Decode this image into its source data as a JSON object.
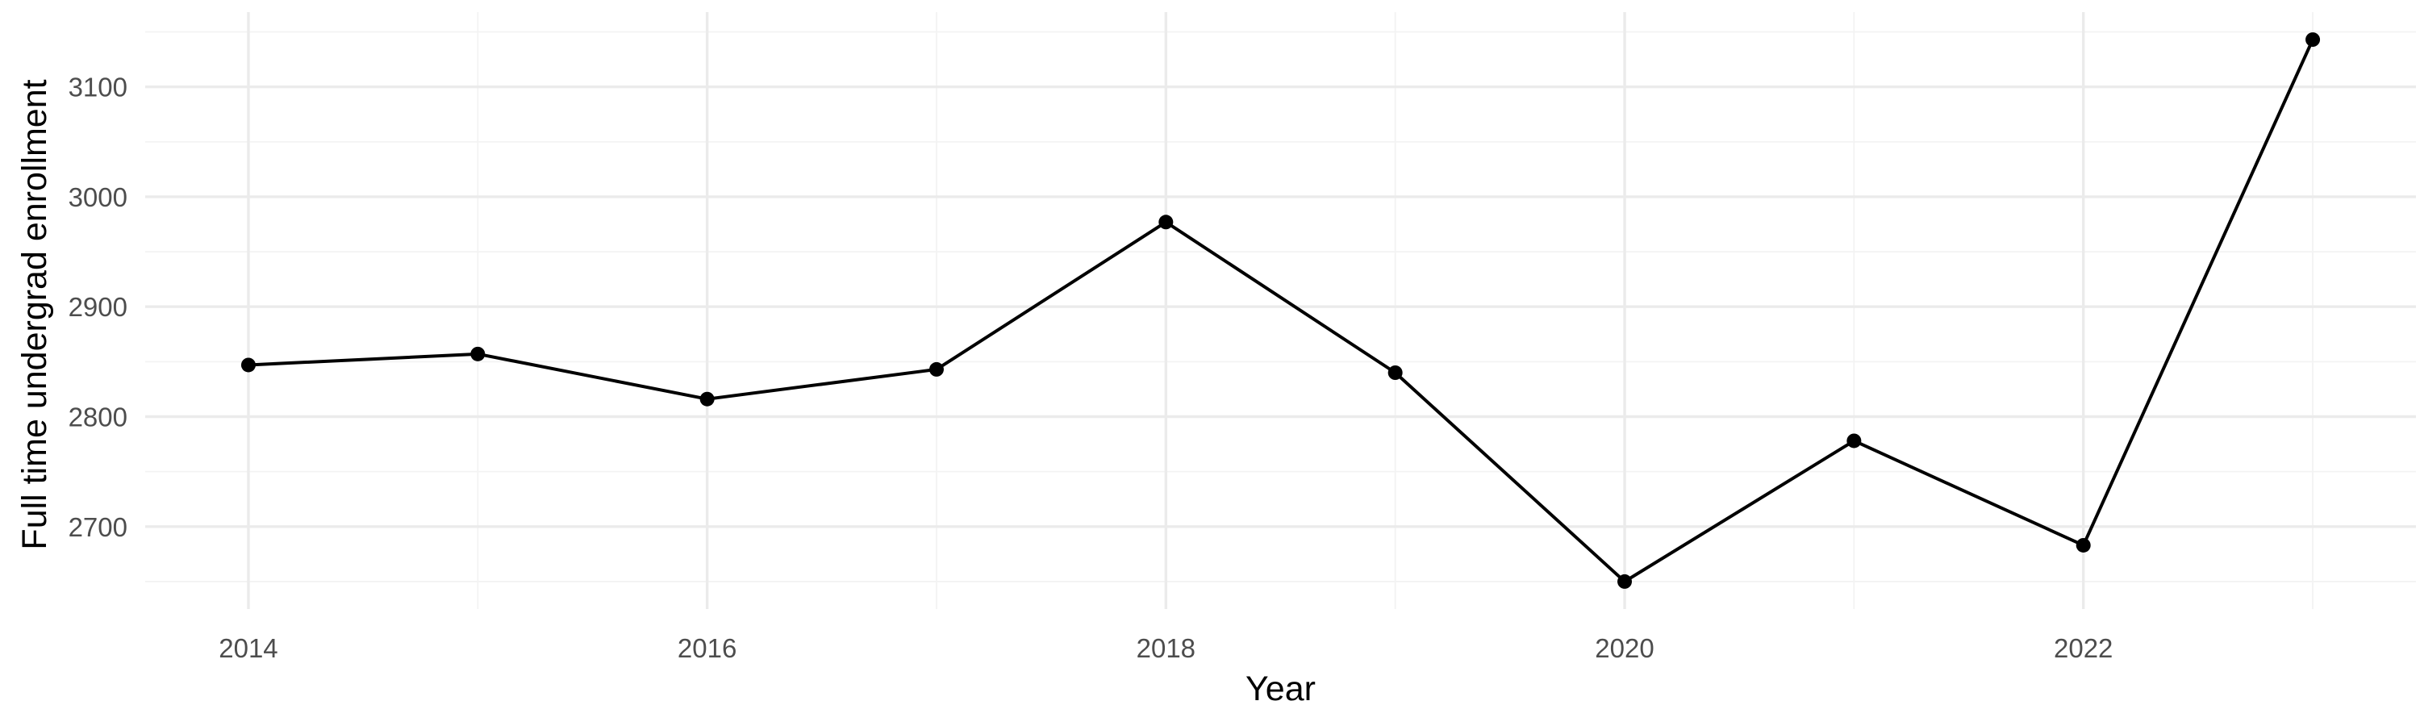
{
  "chart_data": {
    "type": "line",
    "title": "",
    "xlabel": "Year",
    "ylabel": "Full time undergrad enrollment",
    "x": [
      2014,
      2015,
      2016,
      2017,
      2018,
      2019,
      2020,
      2021,
      2022,
      2023
    ],
    "series": [
      {
        "values": [
          2847,
          2857,
          2816,
          2843,
          2977,
          2840,
          2650,
          2778,
          2683,
          3143
        ]
      }
    ],
    "xlim": [
      2013.55,
      2023.45
    ],
    "ylim": [
      2625,
      3168
    ],
    "x_ticks": [
      2014,
      2016,
      2018,
      2020,
      2022
    ],
    "x_tick_labels": [
      "2014",
      "2016",
      "2018",
      "2020",
      "2022"
    ],
    "x_minor_ticks": [
      2015,
      2017,
      2019,
      2021,
      2023
    ],
    "y_ticks": [
      2700,
      2800,
      2900,
      3000,
      3100
    ],
    "y_tick_labels": [
      "2700",
      "2800",
      "2900",
      "3000",
      "3100"
    ],
    "y_minor_ticks": [
      2650,
      2750,
      2850,
      2950,
      3050,
      3150
    ],
    "grid": true,
    "legend": "none",
    "colors": {
      "line": "#000000",
      "points": "#000000",
      "grid": "#ebebeb",
      "background": "#ffffff"
    }
  }
}
